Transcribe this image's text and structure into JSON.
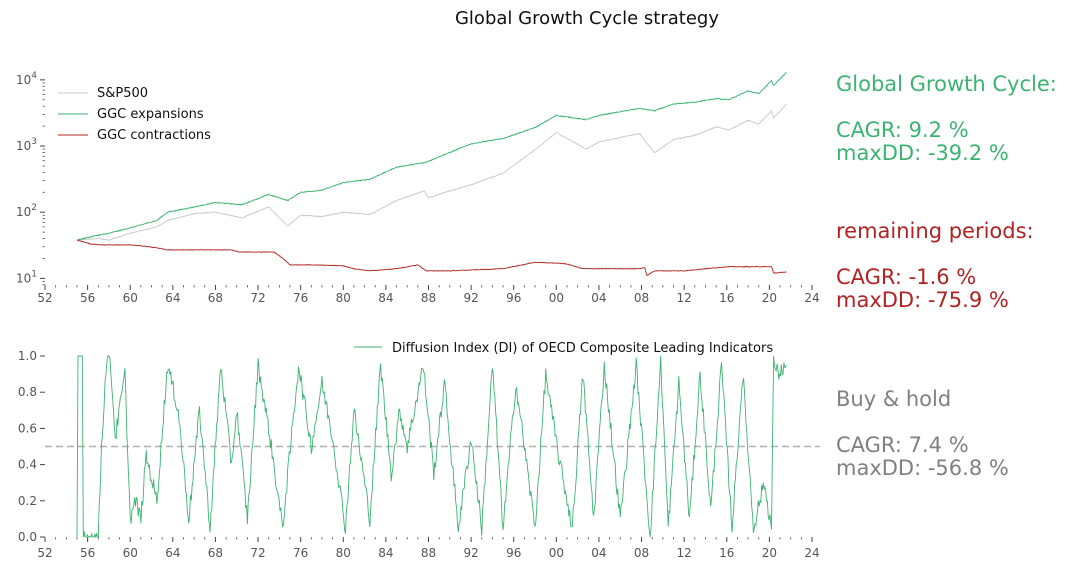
{
  "chart_data": [
    {
      "type": "line",
      "title": "Global Growth Cycle strategy",
      "yscale": "log",
      "xlim": [
        1952,
        2024
      ],
      "ylim_log10": [
        0.9,
        4.3
      ],
      "xticks": [
        1952,
        1956,
        1960,
        1964,
        1968,
        1972,
        1976,
        1980,
        1984,
        1988,
        1992,
        1996,
        2000,
        2004,
        2008,
        2012,
        2016,
        2020,
        2024
      ],
      "xticklabels": [
        "52",
        "56",
        "60",
        "64",
        "68",
        "72",
        "76",
        "80",
        "84",
        "88",
        "92",
        "96",
        "00",
        "04",
        "08",
        "12",
        "16",
        "20",
        "24"
      ],
      "yticks": [
        10,
        100,
        1000,
        10000
      ],
      "ytick_base": "10",
      "ytick_exponents": [
        "1",
        "2",
        "3",
        "4"
      ],
      "legend": [
        "S&P500",
        "GGC expansions",
        "GGC contractions"
      ],
      "series": [
        {
          "name": "S&P500",
          "color": "#c8c8c8",
          "x": [
            1955.0,
            1957.0,
            1958.0,
            1960.0,
            1962.5,
            1963.5,
            1966.0,
            1968.0,
            1970.5,
            1973.0,
            1974.8,
            1976.0,
            1978.0,
            1980.0,
            1982.5,
            1985.0,
            1987.6,
            1988.0,
            1990.0,
            1992.0,
            1995.0,
            1998.0,
            2000.0,
            2002.8,
            2004.0,
            2007.8,
            2009.2,
            2011.0,
            2013.0,
            2015.0,
            2016.2,
            2018.0,
            2019.0,
            2020.2,
            2020.4,
            2021.6
          ],
          "y": [
            38,
            40,
            38,
            48,
            60,
            75,
            95,
            100,
            82,
            120,
            62,
            90,
            86,
            100,
            92,
            150,
            210,
            165,
            210,
            260,
            390,
            880,
            1600,
            900,
            1150,
            1550,
            790,
            1250,
            1450,
            1950,
            1750,
            2450,
            2150,
            3350,
            2650,
            4300
          ]
        },
        {
          "name": "GGC expansions",
          "color": "#3cb371",
          "x": [
            1955.0,
            1957.0,
            1958.0,
            1960.0,
            1962.5,
            1963.5,
            1966.0,
            1968.0,
            1970.5,
            1973.0,
            1974.8,
            1976.0,
            1978.0,
            1980.0,
            1982.5,
            1985.0,
            1987.6,
            1988.0,
            1990.0,
            1992.0,
            1995.0,
            1998.0,
            2000.0,
            2002.8,
            2004.0,
            2007.8,
            2009.2,
            2011.0,
            2013.0,
            2015.0,
            2016.2,
            2018.0,
            2019.0,
            2020.2,
            2020.4,
            2021.6
          ],
          "y": [
            38,
            45,
            48,
            58,
            75,
            100,
            120,
            140,
            130,
            185,
            150,
            200,
            215,
            280,
            315,
            480,
            560,
            590,
            800,
            1080,
            1300,
            1900,
            2900,
            2500,
            2900,
            3700,
            3400,
            4300,
            4600,
            5200,
            5000,
            6800,
            6200,
            9700,
            8200,
            13000
          ]
        },
        {
          "name": "GGC contractions",
          "color": "#b22222",
          "x": [
            1955.0,
            1955.8,
            1956.3,
            1957.3,
            1960.0,
            1961.0,
            1962.5,
            1963.5,
            1967.0,
            1969.5,
            1970.2,
            1973.5,
            1974.0,
            1974.5,
            1975.0,
            1977.0,
            1980.0,
            1981.0,
            1982.5,
            1985.0,
            1987.0,
            1987.8,
            1990.0,
            1995.0,
            1998.0,
            2000.0,
            2001.0,
            2002.5,
            2007.8,
            2008.3,
            2008.5,
            2009.2,
            2012.0,
            2014.0,
            2016.0,
            2019.0,
            2020.2,
            2020.4,
            2021.6
          ],
          "y": [
            38,
            35,
            33,
            32,
            32,
            31,
            29,
            27,
            27,
            27,
            25,
            25,
            22,
            19,
            16,
            16,
            15.5,
            14,
            13,
            14,
            16,
            13,
            13,
            14,
            17.5,
            17,
            16.5,
            14,
            14,
            14.5,
            11,
            13,
            13,
            14,
            15,
            15,
            15,
            12,
            12.5
          ]
        }
      ],
      "stats": [
        {
          "heading": "Global Growth Cycle:",
          "cagr": "CAGR: 9.2 %",
          "maxdd": "maxDD: -39.2 %",
          "color": "#3cb371"
        },
        {
          "heading": "remaining periods:",
          "cagr": "CAGR: -1.6 %",
          "maxdd": "maxDD: -75.9 %",
          "color": "#b22222"
        }
      ]
    },
    {
      "type": "line",
      "xlim": [
        1952,
        2024
      ],
      "ylim": [
        0,
        1.0
      ],
      "xticks": [
        1952,
        1956,
        1960,
        1964,
        1968,
        1972,
        1976,
        1980,
        1984,
        1988,
        1992,
        1996,
        2000,
        2004,
        2008,
        2012,
        2016,
        2020,
        2024
      ],
      "xticklabels": [
        "52",
        "56",
        "60",
        "64",
        "68",
        "72",
        "76",
        "80",
        "84",
        "88",
        "92",
        "96",
        "00",
        "04",
        "08",
        "12",
        "16",
        "20",
        "24"
      ],
      "yticks": [
        0,
        0.2,
        0.4,
        0.6,
        0.8,
        1.0
      ],
      "yticklabels": [
        "0.0",
        "0.2",
        "0.4",
        "0.6",
        "0.8",
        "1.0"
      ],
      "threshold": 0.5,
      "series": [
        {
          "name": "Diffusion Index (DI) of OECD Composite Leading Indicators",
          "color": "#3cb371",
          "x": [
            1955.0,
            1955.1,
            1955.5,
            1955.6,
            1957.0,
            1957.3,
            1957.8,
            1958.1,
            1958.6,
            1959.5,
            1960.0,
            1960.5,
            1961.0,
            1961.5,
            1962.5,
            1963.5,
            1964.5,
            1965.5,
            1966.5,
            1967.5,
            1968.5,
            1969.5,
            1970.0,
            1971.0,
            1972.0,
            1973.0,
            1974.3,
            1975.8,
            1977.0,
            1978.0,
            1979.0,
            1980.2,
            1981.0,
            1982.5,
            1983.5,
            1984.5,
            1985.3,
            1986.0,
            1987.5,
            1988.5,
            1989.5,
            1990.8,
            1992.0,
            1993.0,
            1994.0,
            1995.0,
            1996.2,
            1997.0,
            1998.0,
            1999.0,
            2000.2,
            2001.5,
            2002.5,
            2003.5,
            2004.5,
            2006.0,
            2007.5,
            2008.8,
            2009.8,
            2010.5,
            2011.5,
            2012.5,
            2013.5,
            2014.5,
            2015.5,
            2016.5,
            2017.5,
            2018.5,
            2019.5,
            2020.2,
            2020.4,
            2020.8,
            2021.6
          ],
          "y": [
            0.0,
            1.0,
            1.0,
            0.0,
            0.0,
            0.5,
            1.0,
            1.0,
            0.55,
            0.9,
            0.1,
            0.2,
            0.1,
            0.45,
            0.2,
            0.95,
            0.7,
            0.1,
            0.7,
            0.05,
            0.95,
            0.4,
            0.7,
            0.1,
            0.95,
            0.6,
            0.05,
            0.95,
            0.5,
            0.85,
            0.55,
            0.05,
            0.7,
            0.1,
            0.95,
            0.35,
            0.7,
            0.5,
            0.95,
            0.35,
            0.85,
            0.05,
            0.55,
            0.05,
            0.95,
            0.05,
            0.85,
            0.5,
            0.05,
            0.9,
            0.45,
            0.05,
            0.9,
            0.1,
            0.95,
            0.1,
            0.95,
            0.0,
            0.98,
            0.05,
            0.85,
            0.1,
            0.9,
            0.15,
            0.95,
            0.05,
            0.9,
            0.05,
            0.3,
            0.05,
            0.98,
            0.9,
            0.95
          ]
        }
      ],
      "buy_and_hold": {
        "heading": "Buy & hold",
        "cagr": "CAGR: 7.4 %",
        "maxdd": "maxDD: -56.8 %",
        "color": "#808080"
      }
    }
  ]
}
